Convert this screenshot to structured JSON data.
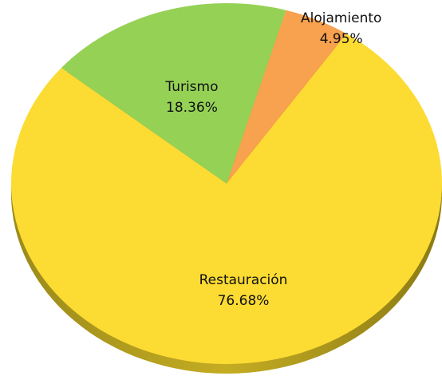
{
  "chart_data": {
    "type": "pie",
    "categories": [
      "Alojamiento",
      "Restauración",
      "Turismo"
    ],
    "values": [
      4.95,
      76.68,
      18.36
    ],
    "value_labels": [
      "4.95%",
      "76.68%",
      "18.36%"
    ],
    "colors": [
      "#f8a14e",
      "#fcdb33",
      "#95d155"
    ]
  }
}
